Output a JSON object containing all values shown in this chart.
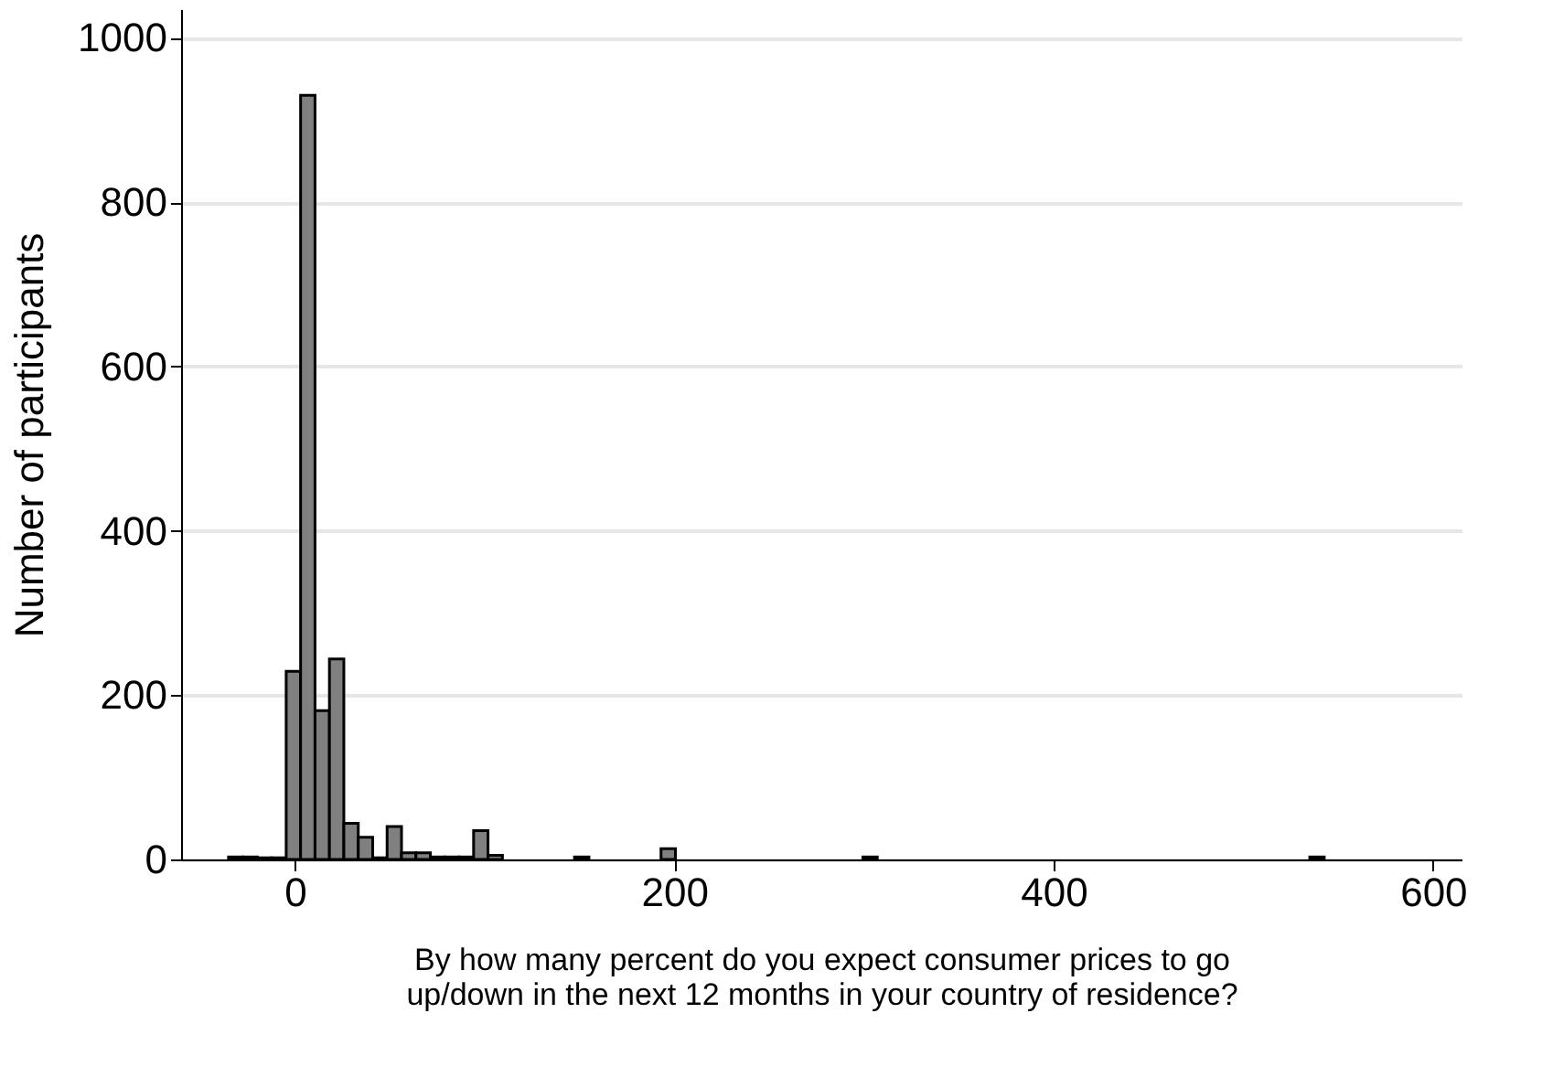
{
  "chart_data": {
    "type": "histogram",
    "xlabel": "By how many percent do you expect consumer prices to go\nup/down in the next 12 months in your country of residence?",
    "ylabel": "Number of participants",
    "bins": [
      -35,
      -27.4,
      -19.8,
      -12.2,
      -4.6,
      3,
      10.6,
      18.2,
      25.8,
      33.4,
      41,
      48.6,
      56.2,
      63.8,
      71.4,
      79,
      86.6,
      94.2,
      101.8,
      109.4,
      117,
      124.6,
      132.2,
      139.8,
      147.4,
      155,
      162.6,
      170.2,
      177.8,
      185.4,
      193,
      200.6,
      208.2,
      215.8,
      223.4,
      231,
      238.6,
      246.2,
      253.8,
      261.4,
      269,
      276.6,
      284.2,
      291.8,
      299.4,
      307,
      314.6,
      322.2,
      329.8,
      337.4,
      345,
      352.6,
      360.2,
      367.8,
      375.4,
      383,
      390.6,
      398.2,
      405.8,
      413.4,
      421,
      428.6,
      436.2,
      443.8,
      451.4,
      459,
      466.6,
      474.2,
      481.8,
      489.4,
      497,
      504.6,
      512.2,
      519.8,
      527.4,
      535,
      542.6
    ],
    "values": [
      3,
      3,
      2,
      2,
      229,
      930,
      181,
      244,
      44,
      27,
      2,
      40,
      8,
      8,
      3,
      3,
      3,
      35,
      5,
      0,
      0,
      0,
      0,
      0,
      3,
      0,
      0,
      0,
      0,
      0,
      13,
      0,
      0,
      0,
      0,
      0,
      0,
      0,
      0,
      0,
      0,
      0,
      0,
      0,
      3,
      0,
      0,
      0,
      0,
      0,
      0,
      0,
      0,
      0,
      0,
      0,
      0,
      0,
      0,
      0,
      0,
      0,
      0,
      0,
      0,
      0,
      0,
      0,
      0,
      0,
      0,
      0,
      0,
      0,
      0,
      3
    ],
    "color": "#808080",
    "xlim": [
      -60,
      615
    ],
    "xticks": [
      0,
      200,
      400,
      600
    ],
    "ylim": [
      0,
      1035
    ],
    "yticks": [
      0,
      200,
      400,
      600,
      800,
      {
        "value": 1000,
        "label": "1000"
      }
    ],
    "grid": "y"
  }
}
